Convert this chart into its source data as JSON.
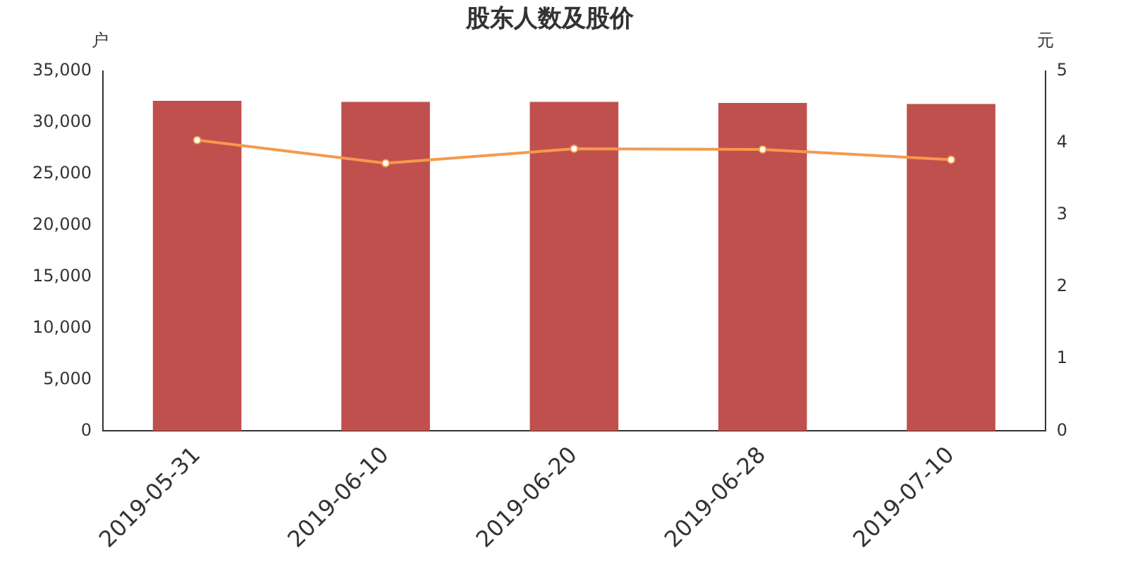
{
  "chart_data": {
    "type": "bar",
    "title": "股东人数及股价",
    "ylabel": "户",
    "y2label": "元",
    "categories": [
      "2019-05-31",
      "2019-06-10",
      "2019-06-20",
      "2019-06-28",
      "2019-07-10"
    ],
    "series": [
      {
        "color": "#c0504d",
        "values": [
          32100,
          32000,
          32000,
          31900,
          31800
        ]
      },
      {
        "type": "line",
        "axis": "y2",
        "color": "#f5994e",
        "values": [
          4.04,
          3.72,
          3.92,
          3.91,
          3.77
        ]
      }
    ],
    "ylim": [
      0,
      35000
    ],
    "yticks": [
      0,
      {
        "value": 5000,
        "label": "5,000"
      },
      {
        "value": 10000,
        "label": "10,000"
      },
      {
        "value": 15000,
        "label": "15,000"
      },
      {
        "value": 20000,
        "label": "20,000"
      },
      {
        "value": 25000,
        "label": "25,000"
      },
      {
        "value": 30000,
        "label": "30,000"
      },
      {
        "value": 35000,
        "label": "35,000"
      }
    ],
    "y2lim": [
      0,
      5
    ],
    "y2ticks": [
      0,
      1,
      2,
      3,
      4,
      5
    ],
    "grid": false,
    "legend": false,
    "marker": "circle",
    "line_style": "solid"
  }
}
